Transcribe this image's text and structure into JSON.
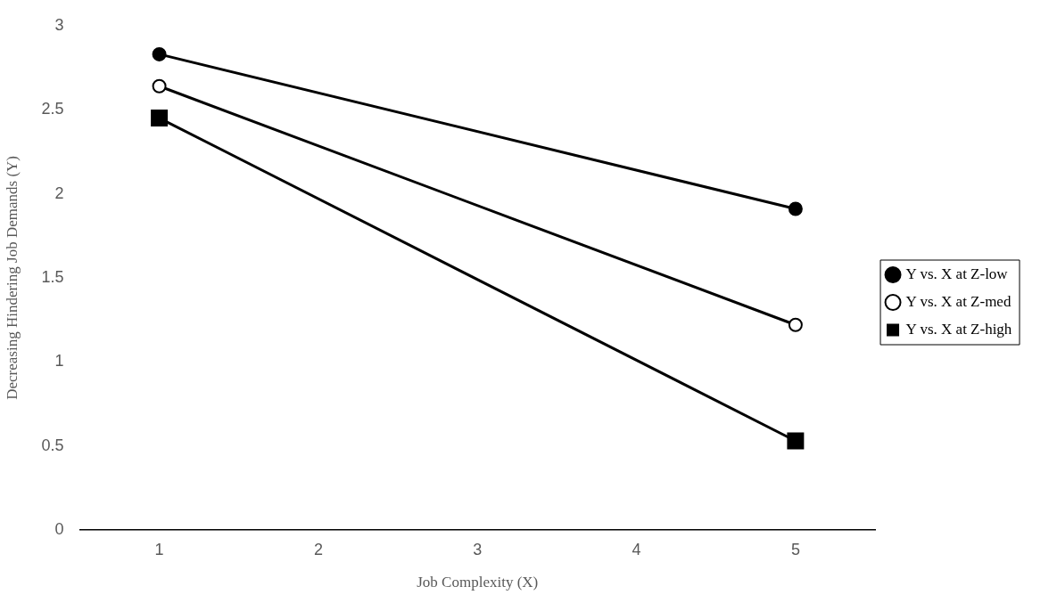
{
  "chart_data": {
    "type": "line",
    "xlabel": "Job Complexity (X)",
    "ylabel": "Decreasing Hindering Job Demands (Y)",
    "x": [
      1,
      5
    ],
    "series": [
      {
        "name": "Y vs. X at Z-low",
        "color": "#000000",
        "values": [
          2.83,
          1.91
        ],
        "marker": "circle"
      },
      {
        "name": "Y vs. X at Z-med",
        "color": "#000000",
        "values": [
          2.64,
          1.22
        ],
        "marker": "circle-open"
      },
      {
        "name": "Y vs. X at Z-high",
        "color": "#000000",
        "values": [
          2.45,
          0.53
        ],
        "marker": "square"
      }
    ],
    "xlim": [
      0.5,
      5.5
    ],
    "xticks": [
      1,
      2,
      3,
      4,
      5
    ],
    "ylim": [
      0,
      3
    ],
    "yticks": [
      0,
      0.5,
      1,
      1.5,
      2,
      2.5,
      3
    ],
    "grid": false,
    "legend": "right",
    "line_style": "solid"
  }
}
